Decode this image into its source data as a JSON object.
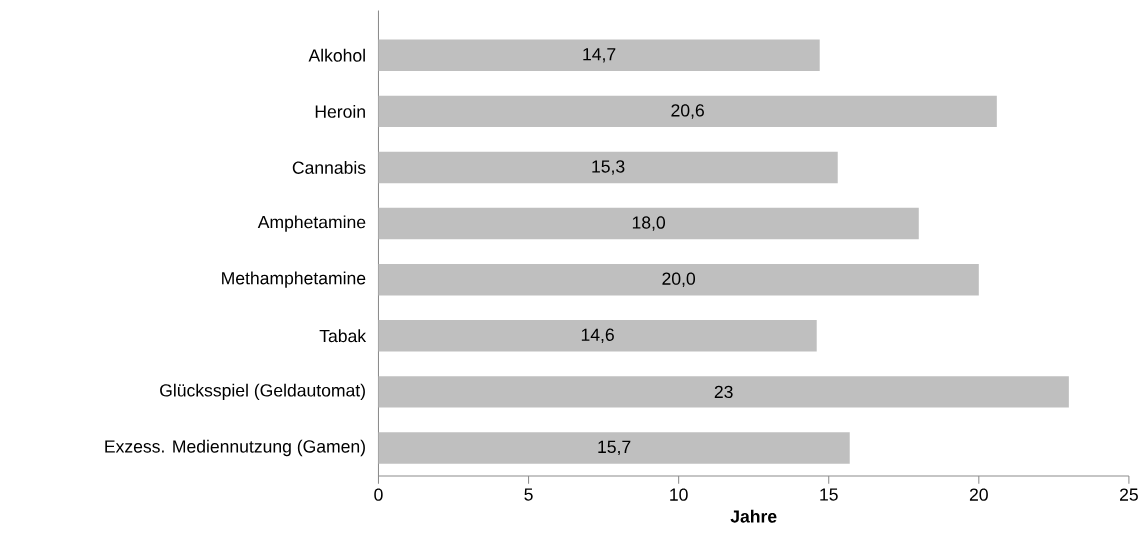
{
  "chart_data": {
    "type": "bar",
    "orientation": "horizontal",
    "xlabel": "Jahre",
    "categories": [
      "Alkohol",
      "Heroin",
      "Cannabis",
      "Amphetamine",
      "Methamphetamine",
      "Tabak",
      "Glücksspiel (Geldautomat)",
      "Exzess. Mediennutzung (Gamen)"
    ],
    "values": [
      14.7,
      20.6,
      15.3,
      18.0,
      20.0,
      14.6,
      23,
      15.7
    ],
    "value_labels": [
      "14,7",
      "20,6",
      "15,3",
      "18,0",
      "20,0",
      "14,6",
      "23",
      "15,7"
    ],
    "color": "#bfbfbf",
    "xlim": [
      0,
      25
    ],
    "xticks": [
      0,
      5,
      10,
      15,
      20,
      25
    ],
    "grid": false
  }
}
